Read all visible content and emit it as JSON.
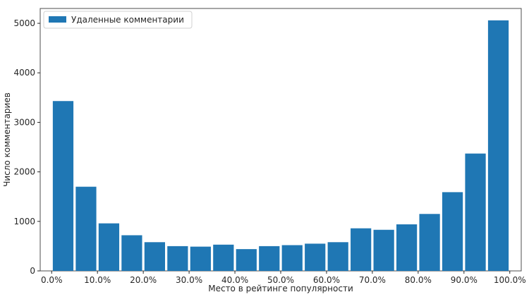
{
  "chart_data": {
    "type": "bar",
    "xlabel": "Место в рейтинге популярности",
    "ylabel": "Число комментариев",
    "legend": {
      "label": "Удаленные комментарии",
      "placement": "top-left"
    },
    "bar_color": "#1f77b4",
    "x_ticks": [
      "0.0%",
      "10.0%",
      "20.0%",
      "30.0%",
      "40.0%",
      "50.0%",
      "60.0%",
      "70.0%",
      "80.0%",
      "90.0%",
      "100.0%"
    ],
    "y_ticks": [
      "0",
      "1000",
      "2000",
      "3000",
      "4000",
      "5000"
    ],
    "xlim": [
      -2.5,
      102.5
    ],
    "ylim": [
      0,
      5300
    ],
    "bin_width": 5,
    "x": [
      2.5,
      7.5,
      12.5,
      17.5,
      22.5,
      27.5,
      32.5,
      37.5,
      42.5,
      47.5,
      52.5,
      57.5,
      62.5,
      67.5,
      72.5,
      77.5,
      82.5,
      87.5,
      92.5,
      97.5
    ],
    "values": [
      3430,
      1700,
      960,
      720,
      580,
      500,
      490,
      530,
      440,
      500,
      520,
      550,
      580,
      860,
      830,
      940,
      1150,
      1590,
      2370,
      5060
    ],
    "grid": false
  }
}
